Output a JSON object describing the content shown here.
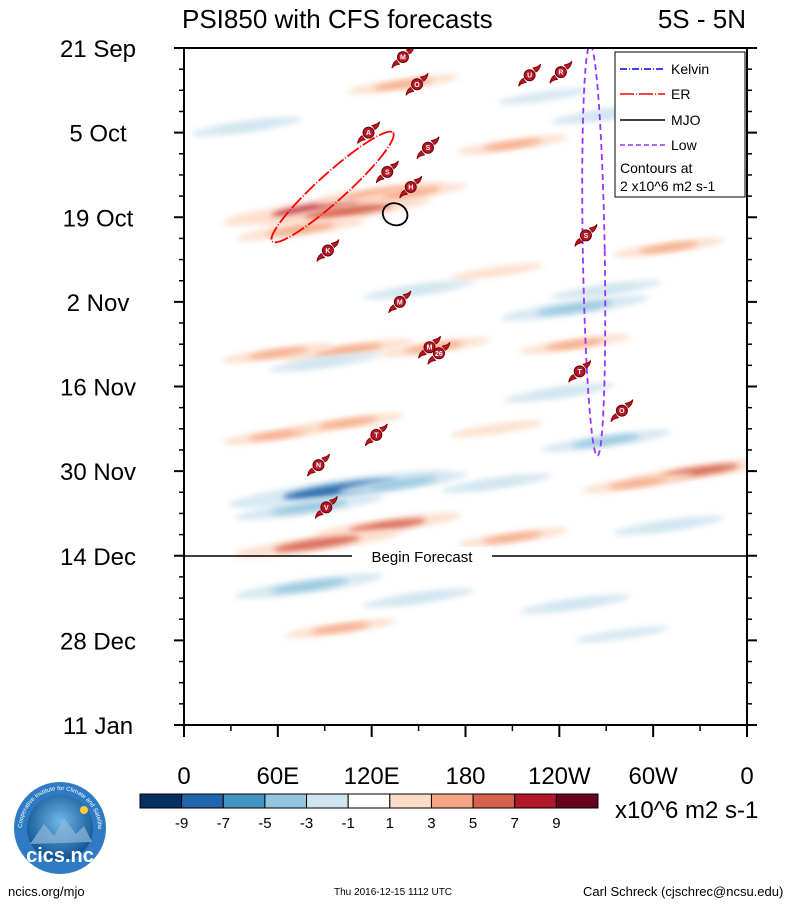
{
  "chart_data": {
    "type": "heatmap",
    "title": "PSI850 with CFS forecasts",
    "region_label": "5S - 5N",
    "y_tick_labels": [
      "21 Sep",
      "5 Oct",
      "19 Oct",
      "2 Nov",
      "16 Nov",
      "30 Nov",
      "14 Dec",
      "28 Dec",
      "11 Jan"
    ],
    "y_tick_days": [
      0,
      14,
      28,
      42,
      56,
      70,
      84,
      98,
      112
    ],
    "y_range_days": [
      0,
      112
    ],
    "x_tick_labels": [
      "0",
      "60E",
      "120E",
      "180",
      "120W",
      "60W",
      "0"
    ],
    "x_tick_lon": [
      0,
      60,
      120,
      180,
      240,
      300,
      360
    ],
    "x_range_lon": [
      0,
      360
    ],
    "forecast_line": {
      "label": "Begin Forecast",
      "day": 84
    },
    "legend": {
      "entries": [
        {
          "name": "Kelvin",
          "color": "#0000ff",
          "style": "dashdot"
        },
        {
          "name": "ER",
          "color": "#ff0000",
          "style": "dashdot"
        },
        {
          "name": "MJO",
          "color": "#000000",
          "style": "solid"
        },
        {
          "name": "Low",
          "color": "#9933ff",
          "style": "dashed"
        }
      ],
      "note_line1": "Contours at",
      "note_line2": "2 x10^6 m2 s-1"
    },
    "colorbar": {
      "tick_labels": [
        "-9",
        "-7",
        "-5",
        "-3",
        "-1",
        "1",
        "3",
        "5",
        "7",
        "9"
      ],
      "colors": [
        "#053061",
        "#2166ac",
        "#4393c3",
        "#92c5de",
        "#d1e5f0",
        "#ffffff",
        "#fddbc7",
        "#f4a582",
        "#d6604d",
        "#b2182b",
        "#67001f"
      ],
      "units": "x10^6 m2 s-1"
    },
    "features": [
      {
        "lon": 90,
        "day": 26.5,
        "value": 8
      },
      {
        "lon": 105,
        "day": 27,
        "value": 6
      },
      {
        "lon": 75,
        "day": 30,
        "value": 4
      },
      {
        "lon": 125,
        "day": 24,
        "value": 4
      },
      {
        "lon": 145,
        "day": 24,
        "value": 3
      },
      {
        "lon": 105,
        "day": 50,
        "value": 4
      },
      {
        "lon": 60,
        "day": 50.5,
        "value": 3
      },
      {
        "lon": 160,
        "day": 49.5,
        "value": 3
      },
      {
        "lon": 250,
        "day": 49,
        "value": 3
      },
      {
        "lon": 90,
        "day": 52,
        "value": -3
      },
      {
        "lon": 150,
        "day": 40,
        "value": -3
      },
      {
        "lon": 250,
        "day": 43,
        "value": -5
      },
      {
        "lon": 270,
        "day": 40,
        "value": -3
      },
      {
        "lon": 270,
        "day": 65,
        "value": -4
      },
      {
        "lon": 240,
        "day": 57,
        "value": -3
      },
      {
        "lon": 60,
        "day": 64,
        "value": 3
      },
      {
        "lon": 105,
        "day": 62,
        "value": 3
      },
      {
        "lon": 200,
        "day": 63,
        "value": 2
      },
      {
        "lon": 100,
        "day": 73,
        "value": -9
      },
      {
        "lon": 80,
        "day": 76,
        "value": -5
      },
      {
        "lon": 140,
        "day": 72,
        "value": -4
      },
      {
        "lon": 200,
        "day": 72,
        "value": -3
      },
      {
        "lon": 330,
        "day": 70,
        "value": 5
      },
      {
        "lon": 290,
        "day": 72,
        "value": 3
      },
      {
        "lon": 130,
        "day": 79,
        "value": 5
      },
      {
        "lon": 85,
        "day": 82,
        "value": 6
      },
      {
        "lon": 210,
        "day": 81,
        "value": 3
      },
      {
        "lon": 310,
        "day": 79,
        "value": -3
      },
      {
        "lon": 80,
        "day": 89,
        "value": -5
      },
      {
        "lon": 150,
        "day": 91,
        "value": -3
      },
      {
        "lon": 250,
        "day": 92,
        "value": -3
      },
      {
        "lon": 100,
        "day": 96,
        "value": 3
      },
      {
        "lon": 280,
        "day": 97,
        "value": -2
      },
      {
        "lon": 210,
        "day": 16,
        "value": 3
      },
      {
        "lon": 270,
        "day": 11,
        "value": -3
      },
      {
        "lon": 40,
        "day": 13,
        "value": -3
      },
      {
        "lon": 140,
        "day": 6,
        "value": 3
      },
      {
        "lon": 230,
        "day": 8,
        "value": -2
      },
      {
        "lon": 310,
        "day": 33,
        "value": 3
      },
      {
        "lon": 200,
        "day": 37,
        "value": 2
      }
    ],
    "contours": [
      {
        "type": "ER",
        "center_lon": 95,
        "center_day": 23,
        "rx_lon": 52,
        "ry_day": 2.3,
        "angle_deg": -42
      },
      {
        "type": "MJO",
        "center_lon": 135,
        "center_day": 27.5,
        "rx_lon": 8,
        "ry_day": 1.8,
        "angle_deg": 20
      },
      {
        "type": "Low",
        "center_lon": 262,
        "center_day": 33.5,
        "rx_lon": 7,
        "ry_day": 34,
        "angle_deg": -1
      }
    ],
    "storm_markers": [
      {
        "label": "M",
        "lon": 140,
        "day": 1.5
      },
      {
        "label": "O",
        "lon": 149,
        "day": 6
      },
      {
        "label": "U",
        "lon": 221,
        "day": 4.5
      },
      {
        "label": "R",
        "lon": 241,
        "day": 4
      },
      {
        "label": "A",
        "lon": 118,
        "day": 14
      },
      {
        "label": "S",
        "lon": 156,
        "day": 16.5
      },
      {
        "label": "S",
        "lon": 130,
        "day": 20.5
      },
      {
        "label": "H",
        "lon": 145,
        "day": 23
      },
      {
        "label": "K",
        "lon": 92,
        "day": 33.5
      },
      {
        "label": "S",
        "lon": 257,
        "day": 31
      },
      {
        "label": "M",
        "lon": 138,
        "day": 42
      },
      {
        "label": "M",
        "lon": 157,
        "day": 49.5
      },
      {
        "label": "26",
        "lon": 163,
        "day": 50.5
      },
      {
        "label": "T",
        "lon": 253,
        "day": 53.5
      },
      {
        "label": "O",
        "lon": 280,
        "day": 60
      },
      {
        "label": "T",
        "lon": 123,
        "day": 64
      },
      {
        "label": "N",
        "lon": 86,
        "day": 69
      },
      {
        "label": "V",
        "lon": 91,
        "day": 76
      }
    ]
  },
  "footer": {
    "left": "ncics.org/mjo",
    "center": "Thu 2016-12-15 1112 UTC",
    "right": "Carl Schreck (cjschrec@ncsu.edu)"
  },
  "logo": {
    "text": "cics.nc",
    "ring_text": "Cooperative Institute for Climate and Satellites"
  }
}
